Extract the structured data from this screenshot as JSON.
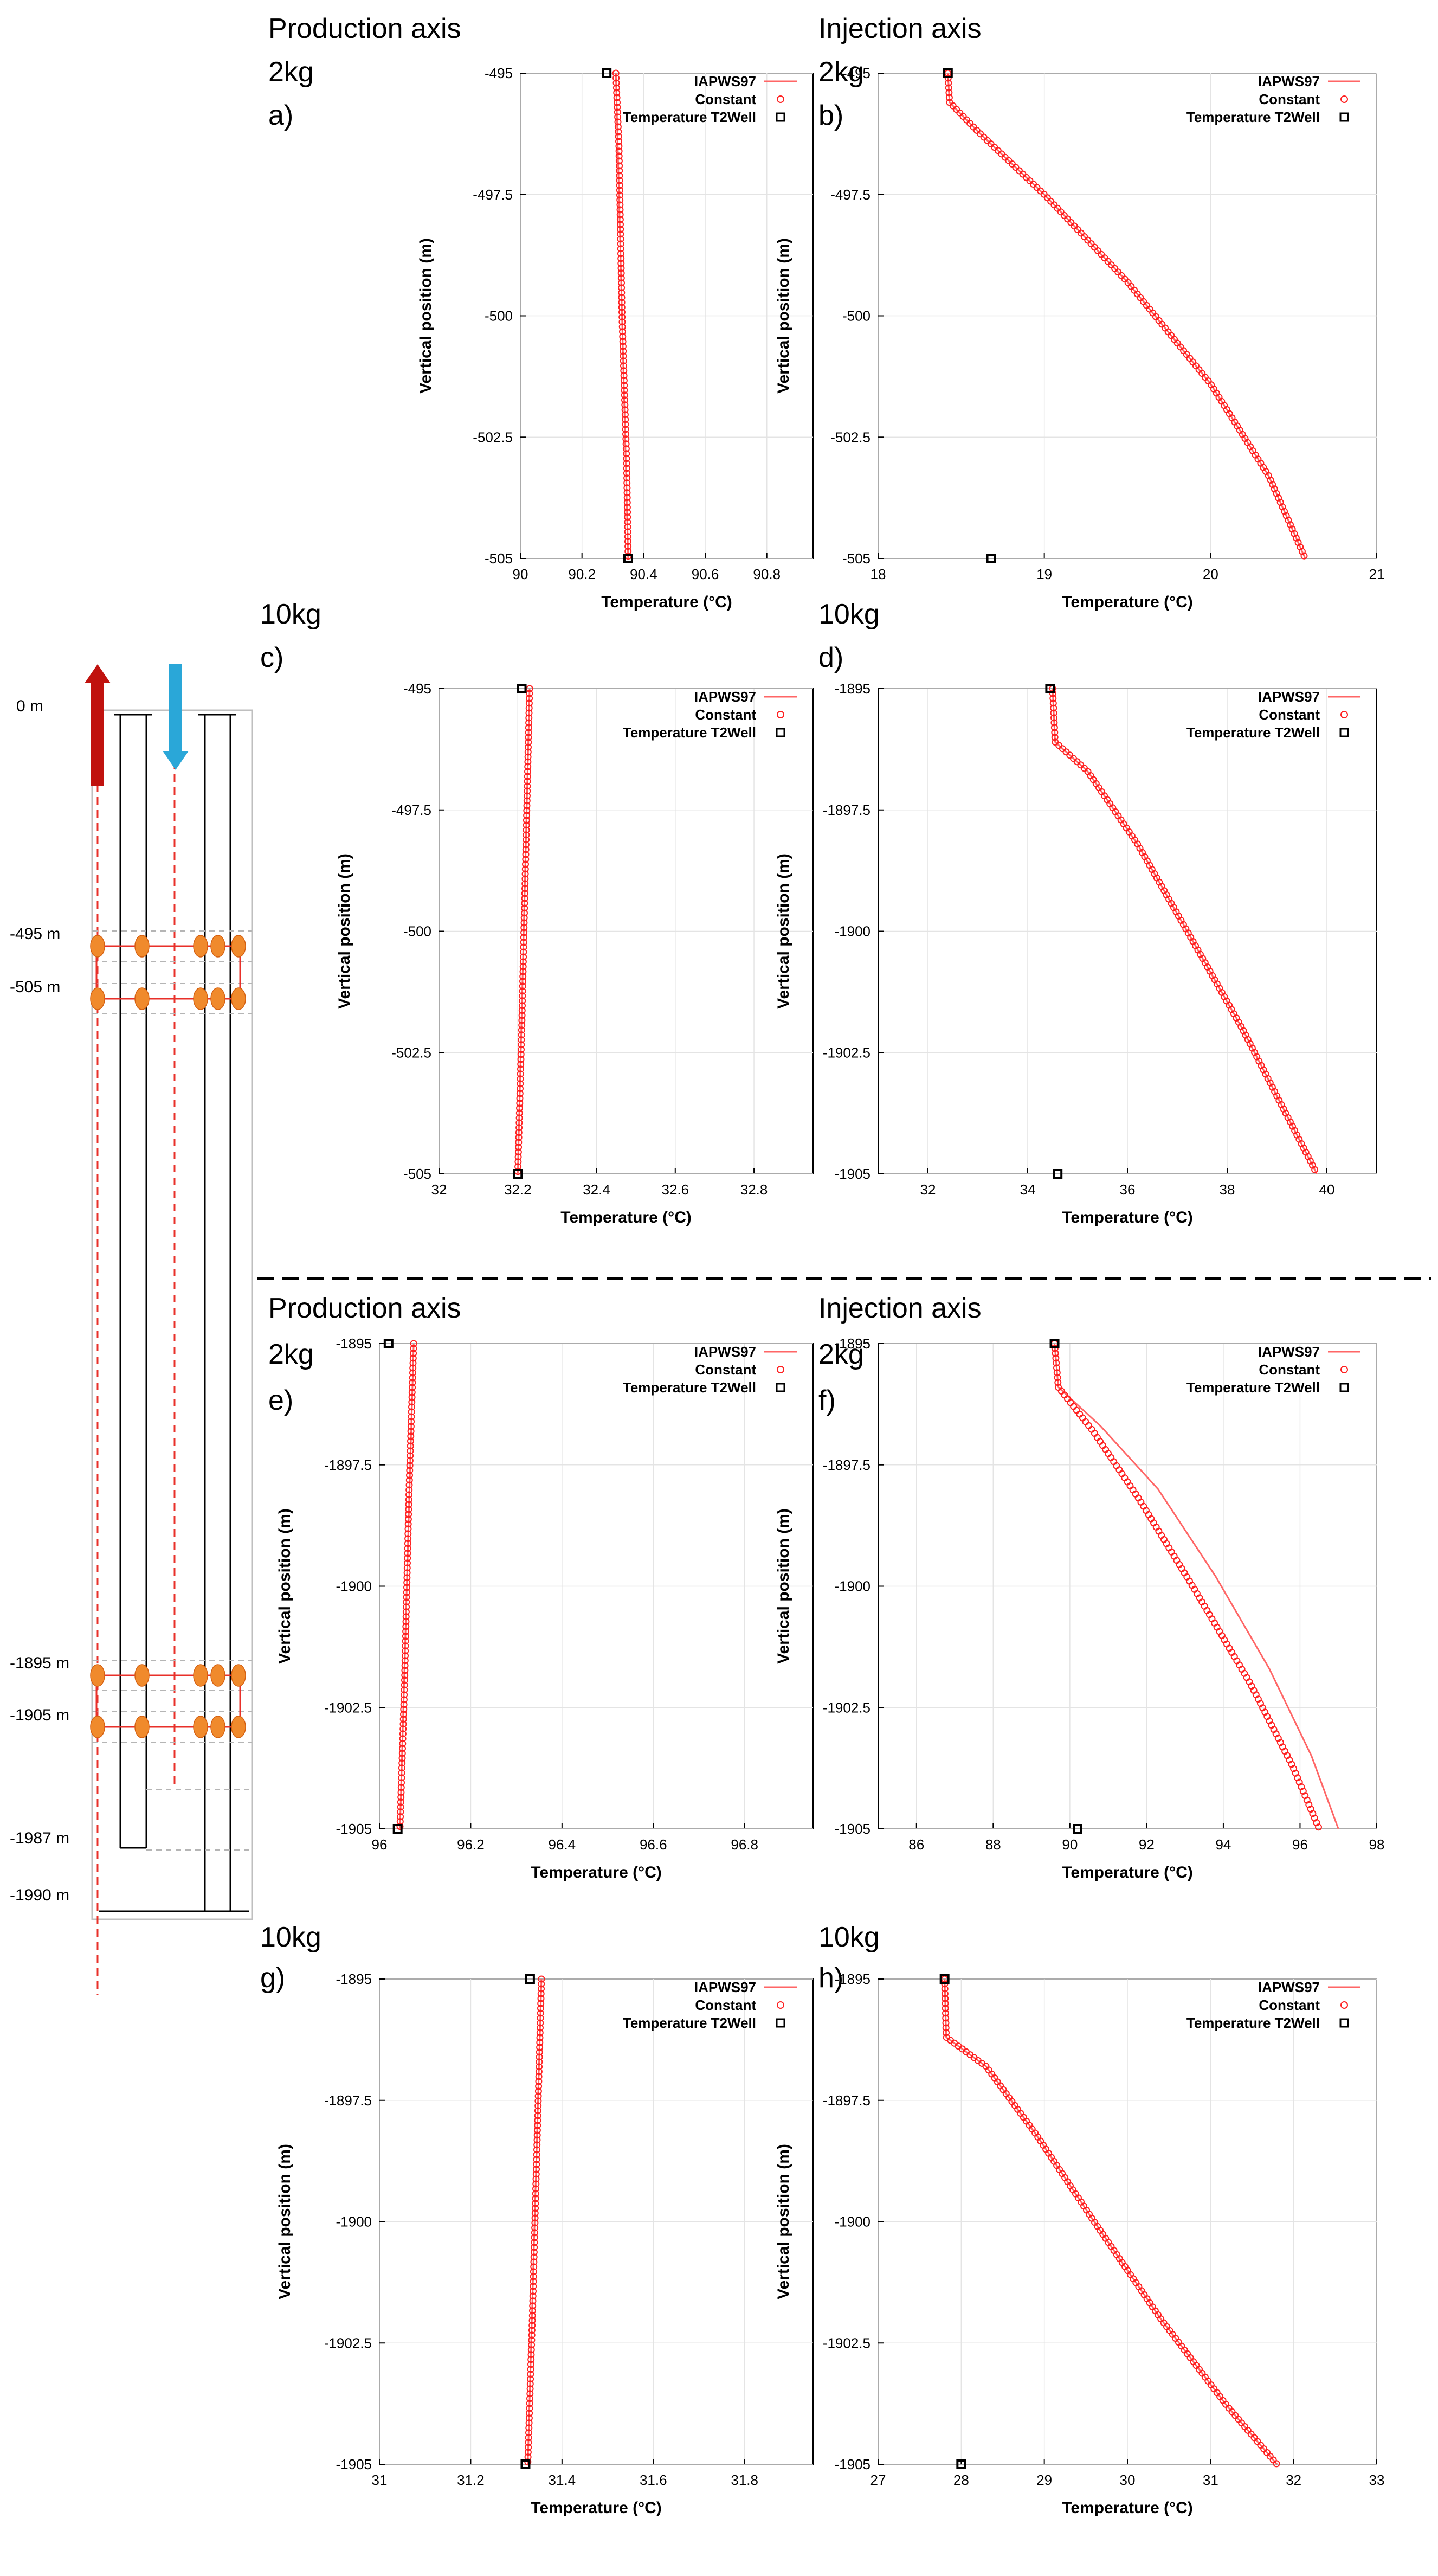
{
  "headings": {
    "production_top": "Production axis",
    "injection_top": "Injection axis",
    "production_bottom": "Production axis",
    "injection_bottom": "Injection axis"
  },
  "well_diagram": {
    "depth_labels": [
      "0 m",
      "-495 m",
      "-505 m",
      "-1895 m",
      "-1905 m",
      "-1987 m",
      "-1990 m"
    ],
    "colors": {
      "production_arrow": "#c0120e",
      "injection_arrow": "#2aa7d8",
      "perforation": "#f08a2c",
      "zone_line": "#e8302a"
    }
  },
  "chart_data": [
    {
      "id": "a",
      "letter": "a)",
      "mass": "2kg",
      "type": "scatter",
      "xlabel": "Temperature (°C)",
      "ylabel": "Vertical position (m)",
      "xlim": [
        90,
        90.95
      ],
      "ylim": [
        -505,
        -495
      ],
      "xticks": [
        "90",
        "90.2",
        "90.4",
        "90.6",
        "90.8"
      ],
      "yticks": [
        "-495",
        "-497.5",
        "-500",
        "-502.5",
        "-505"
      ],
      "legend": [
        "IAPWS97",
        "Constant",
        "Temperature T2Well"
      ],
      "series": [
        {
          "name": "IAPWS97",
          "kind": "line",
          "points": [
            [
              90.31,
              -495
            ],
            [
              90.33,
              -500
            ],
            [
              90.35,
              -505
            ]
          ]
        },
        {
          "name": "Constant",
          "kind": "circles",
          "points": [
            [
              90.31,
              -495
            ],
            [
              90.32,
              -496.5
            ],
            [
              90.33,
              -500
            ],
            [
              90.345,
              -503
            ],
            [
              90.35,
              -505
            ]
          ]
        },
        {
          "name": "Temperature T2Well",
          "kind": "square",
          "points": [
            [
              90.28,
              -495
            ],
            [
              90.35,
              -505
            ]
          ]
        }
      ]
    },
    {
      "id": "b",
      "letter": "b)",
      "mass": "2kg",
      "type": "scatter",
      "xlabel": "Temperature (°C)",
      "ylabel": "Vertical position (m)",
      "xlim": [
        18,
        21
      ],
      "ylim": [
        -505,
        -495
      ],
      "xticks": [
        "18",
        "19",
        "20",
        "21"
      ],
      "yticks": [
        "-495",
        "-497.5",
        "-500",
        "-502.5",
        "-505"
      ],
      "legend": [
        "IAPWS97",
        "Constant",
        "Temperature T2Well"
      ],
      "series": [
        {
          "name": "IAPWS97",
          "kind": "line",
          "points": [
            [
              18.42,
              -495
            ],
            [
              18.43,
              -495.6
            ],
            [
              18.6,
              -496.2
            ],
            [
              19.0,
              -497.5
            ],
            [
              19.5,
              -499.3
            ],
            [
              20.0,
              -501.4
            ],
            [
              20.35,
              -503.3
            ],
            [
              20.57,
              -505
            ]
          ]
        },
        {
          "name": "Constant",
          "kind": "circles",
          "points": [
            [
              18.42,
              -495
            ],
            [
              18.43,
              -495.6
            ],
            [
              18.6,
              -496.2
            ],
            [
              19.0,
              -497.5
            ],
            [
              19.5,
              -499.3
            ],
            [
              20.0,
              -501.4
            ],
            [
              20.35,
              -503.3
            ],
            [
              20.57,
              -505
            ]
          ]
        },
        {
          "name": "Temperature T2Well",
          "kind": "square",
          "points": [
            [
              18.42,
              -495
            ],
            [
              18.68,
              -505
            ]
          ]
        }
      ]
    },
    {
      "id": "c",
      "letter": "c)",
      "mass": "10kg",
      "type": "scatter",
      "xlabel": "Temperature (°C)",
      "ylabel": "Vertical position (m)",
      "xlim": [
        32,
        32.95
      ],
      "ylim": [
        -505,
        -495
      ],
      "xticks": [
        "32",
        "32.2",
        "32.4",
        "32.6",
        "32.8"
      ],
      "yticks": [
        "-495",
        "-497.5",
        "-500",
        "-502.5",
        "-505"
      ],
      "legend": [
        "IAPWS97",
        "Constant",
        "Temperature T2Well"
      ],
      "series": [
        {
          "name": "IAPWS97",
          "kind": "line",
          "points": [
            [
              32.23,
              -495
            ],
            [
              32.215,
              -500
            ],
            [
              32.2,
              -505
            ]
          ]
        },
        {
          "name": "Constant",
          "kind": "circles",
          "points": [
            [
              32.23,
              -495
            ],
            [
              32.22,
              -498.5
            ],
            [
              32.21,
              -502
            ],
            [
              32.2,
              -505
            ]
          ]
        },
        {
          "name": "Temperature T2Well",
          "kind": "square",
          "points": [
            [
              32.21,
              -495
            ],
            [
              32.2,
              -505
            ]
          ]
        }
      ]
    },
    {
      "id": "d",
      "letter": "d)",
      "mass": "10kg",
      "type": "scatter",
      "xlabel": "Temperature (°C)",
      "ylabel": "Vertical position (m)",
      "xlim": [
        31,
        41
      ],
      "ylim": [
        -1905,
        -1895
      ],
      "xticks": [
        "32",
        "34",
        "36",
        "38",
        "40"
      ],
      "yticks": [
        "-1895",
        "-1897.5",
        "-1900",
        "-1902.5",
        "-1905"
      ],
      "legend": [
        "IAPWS97",
        "Constant",
        "Temperature T2Well"
      ],
      "series": [
        {
          "name": "IAPWS97",
          "kind": "line",
          "points": [
            [
              34.5,
              -1895
            ],
            [
              34.55,
              -1896.1
            ],
            [
              35.2,
              -1896.7
            ],
            [
              36.2,
              -1898.2
            ],
            [
              37.2,
              -1900
            ],
            [
              38.3,
              -1902
            ],
            [
              39.2,
              -1903.8
            ],
            [
              39.8,
              -1905
            ]
          ]
        },
        {
          "name": "Constant",
          "kind": "circles",
          "points": [
            [
              34.5,
              -1895
            ],
            [
              34.55,
              -1896.1
            ],
            [
              35.2,
              -1896.7
            ],
            [
              36.2,
              -1898.2
            ],
            [
              37.2,
              -1900
            ],
            [
              38.3,
              -1902
            ],
            [
              39.2,
              -1903.8
            ],
            [
              39.8,
              -1905
            ]
          ]
        },
        {
          "name": "Temperature T2Well",
          "kind": "square",
          "points": [
            [
              34.45,
              -1895
            ],
            [
              34.6,
              -1905
            ]
          ]
        }
      ]
    },
    {
      "id": "e",
      "letter": "e)",
      "mass": "2kg",
      "type": "scatter",
      "xlabel": "Temperature (°C)",
      "ylabel": "Vertical position (m)",
      "xlim": [
        96,
        96.95
      ],
      "ylim": [
        -1905,
        -1895
      ],
      "xticks": [
        "96",
        "96.2",
        "96.4",
        "96.6",
        "96.8"
      ],
      "yticks": [
        "-1895",
        "-1897.5",
        "-1900",
        "-1902.5",
        "-1905"
      ],
      "legend": [
        "IAPWS97",
        "Constant",
        "Temperature T2Well"
      ],
      "series": [
        {
          "name": "IAPWS97",
          "kind": "line",
          "points": [
            [
              96.075,
              -1895
            ],
            [
              96.06,
              -1900
            ],
            [
              96.045,
              -1905
            ]
          ]
        },
        {
          "name": "Constant",
          "kind": "circles",
          "points": [
            [
              96.075,
              -1895
            ],
            [
              96.065,
              -1898
            ],
            [
              96.055,
              -1902
            ],
            [
              96.045,
              -1905
            ]
          ]
        },
        {
          "name": "Temperature T2Well",
          "kind": "square",
          "points": [
            [
              96.02,
              -1895
            ],
            [
              96.04,
              -1905
            ]
          ]
        }
      ]
    },
    {
      "id": "f",
      "letter": "f)",
      "mass": "2kg",
      "type": "scatter",
      "xlabel": "Temperature (°C)",
      "ylabel": "Vertical position (m)",
      "xlim": [
        85,
        98
      ],
      "ylim": [
        -1905,
        -1895
      ],
      "xticks": [
        "86",
        "88",
        "90",
        "92",
        "94",
        "96",
        "98"
      ],
      "yticks": [
        "-1895",
        "-1897.5",
        "-1900",
        "-1902.5",
        "-1905"
      ],
      "legend": [
        "IAPWS97",
        "Constant",
        "Temperature T2Well"
      ],
      "series": [
        {
          "name": "IAPWS97",
          "kind": "line",
          "points": [
            [
              89.6,
              -1895
            ],
            [
              89.7,
              -1895.9
            ],
            [
              90.8,
              -1896.7
            ],
            [
              92.3,
              -1898
            ],
            [
              93.8,
              -1899.8
            ],
            [
              95.2,
              -1901.7
            ],
            [
              96.3,
              -1903.5
            ],
            [
              97.0,
              -1905
            ]
          ]
        },
        {
          "name": "Constant",
          "kind": "circles",
          "points": [
            [
              89.6,
              -1895
            ],
            [
              89.7,
              -1895.9
            ],
            [
              90.6,
              -1896.8
            ],
            [
              91.8,
              -1898.2
            ],
            [
              93.2,
              -1900
            ],
            [
              94.7,
              -1902
            ],
            [
              95.8,
              -1903.7
            ],
            [
              96.5,
              -1905
            ]
          ]
        },
        {
          "name": "Temperature T2Well",
          "kind": "square",
          "points": [
            [
              89.6,
              -1895
            ],
            [
              90.2,
              -1905
            ]
          ]
        }
      ]
    },
    {
      "id": "g",
      "letter": "g)",
      "mass": "10kg",
      "type": "scatter",
      "xlabel": "Temperature (°C)",
      "ylabel": "Vertical position (m)",
      "xlim": [
        31,
        31.95
      ],
      "ylim": [
        -1905,
        -1895
      ],
      "xticks": [
        "31",
        "31.2",
        "31.4",
        "31.6",
        "31.8"
      ],
      "yticks": [
        "-1895",
        "-1897.5",
        "-1900",
        "-1902.5",
        "-1905"
      ],
      "legend": [
        "IAPWS97",
        "Constant",
        "Temperature T2Well"
      ],
      "series": [
        {
          "name": "IAPWS97",
          "kind": "line",
          "points": [
            [
              31.355,
              -1895
            ],
            [
              31.34,
              -1900
            ],
            [
              31.325,
              -1905
            ]
          ]
        },
        {
          "name": "Constant",
          "kind": "circles",
          "points": [
            [
              31.355,
              -1895
            ],
            [
              31.345,
              -1898.5
            ],
            [
              31.335,
              -1902
            ],
            [
              31.325,
              -1905
            ]
          ]
        },
        {
          "name": "Temperature T2Well",
          "kind": "square",
          "points": [
            [
              31.33,
              -1895
            ],
            [
              31.32,
              -1905
            ]
          ]
        }
      ]
    },
    {
      "id": "h",
      "letter": "h)",
      "mass": "10kg",
      "type": "scatter",
      "xlabel": "Temperature (°C)",
      "ylabel": "Vertical position (m)",
      "xlim": [
        27,
        33
      ],
      "ylim": [
        -1905,
        -1895
      ],
      "xticks": [
        "27",
        "28",
        "29",
        "30",
        "31",
        "32",
        "33"
      ],
      "yticks": [
        "-1895",
        "-1897.5",
        "-1900",
        "-1902.5",
        "-1905"
      ],
      "legend": [
        "IAPWS97",
        "Constant",
        "Temperature T2Well"
      ],
      "series": [
        {
          "name": "IAPWS97",
          "kind": "line",
          "points": [
            [
              27.8,
              -1895
            ],
            [
              27.82,
              -1896.2
            ],
            [
              28.3,
              -1896.8
            ],
            [
              28.9,
              -1898.2
            ],
            [
              29.6,
              -1900
            ],
            [
              30.4,
              -1902
            ],
            [
              31.2,
              -1903.8
            ],
            [
              31.8,
              -1905
            ]
          ]
        },
        {
          "name": "Constant",
          "kind": "circles",
          "points": [
            [
              27.8,
              -1895
            ],
            [
              27.82,
              -1896.2
            ],
            [
              28.3,
              -1896.8
            ],
            [
              28.9,
              -1898.2
            ],
            [
              29.6,
              -1900
            ],
            [
              30.4,
              -1902
            ],
            [
              31.2,
              -1903.8
            ],
            [
              31.8,
              -1905
            ]
          ]
        },
        {
          "name": "Temperature T2Well",
          "kind": "square",
          "points": [
            [
              27.8,
              -1895
            ],
            [
              28.0,
              -1905
            ]
          ]
        }
      ]
    }
  ]
}
